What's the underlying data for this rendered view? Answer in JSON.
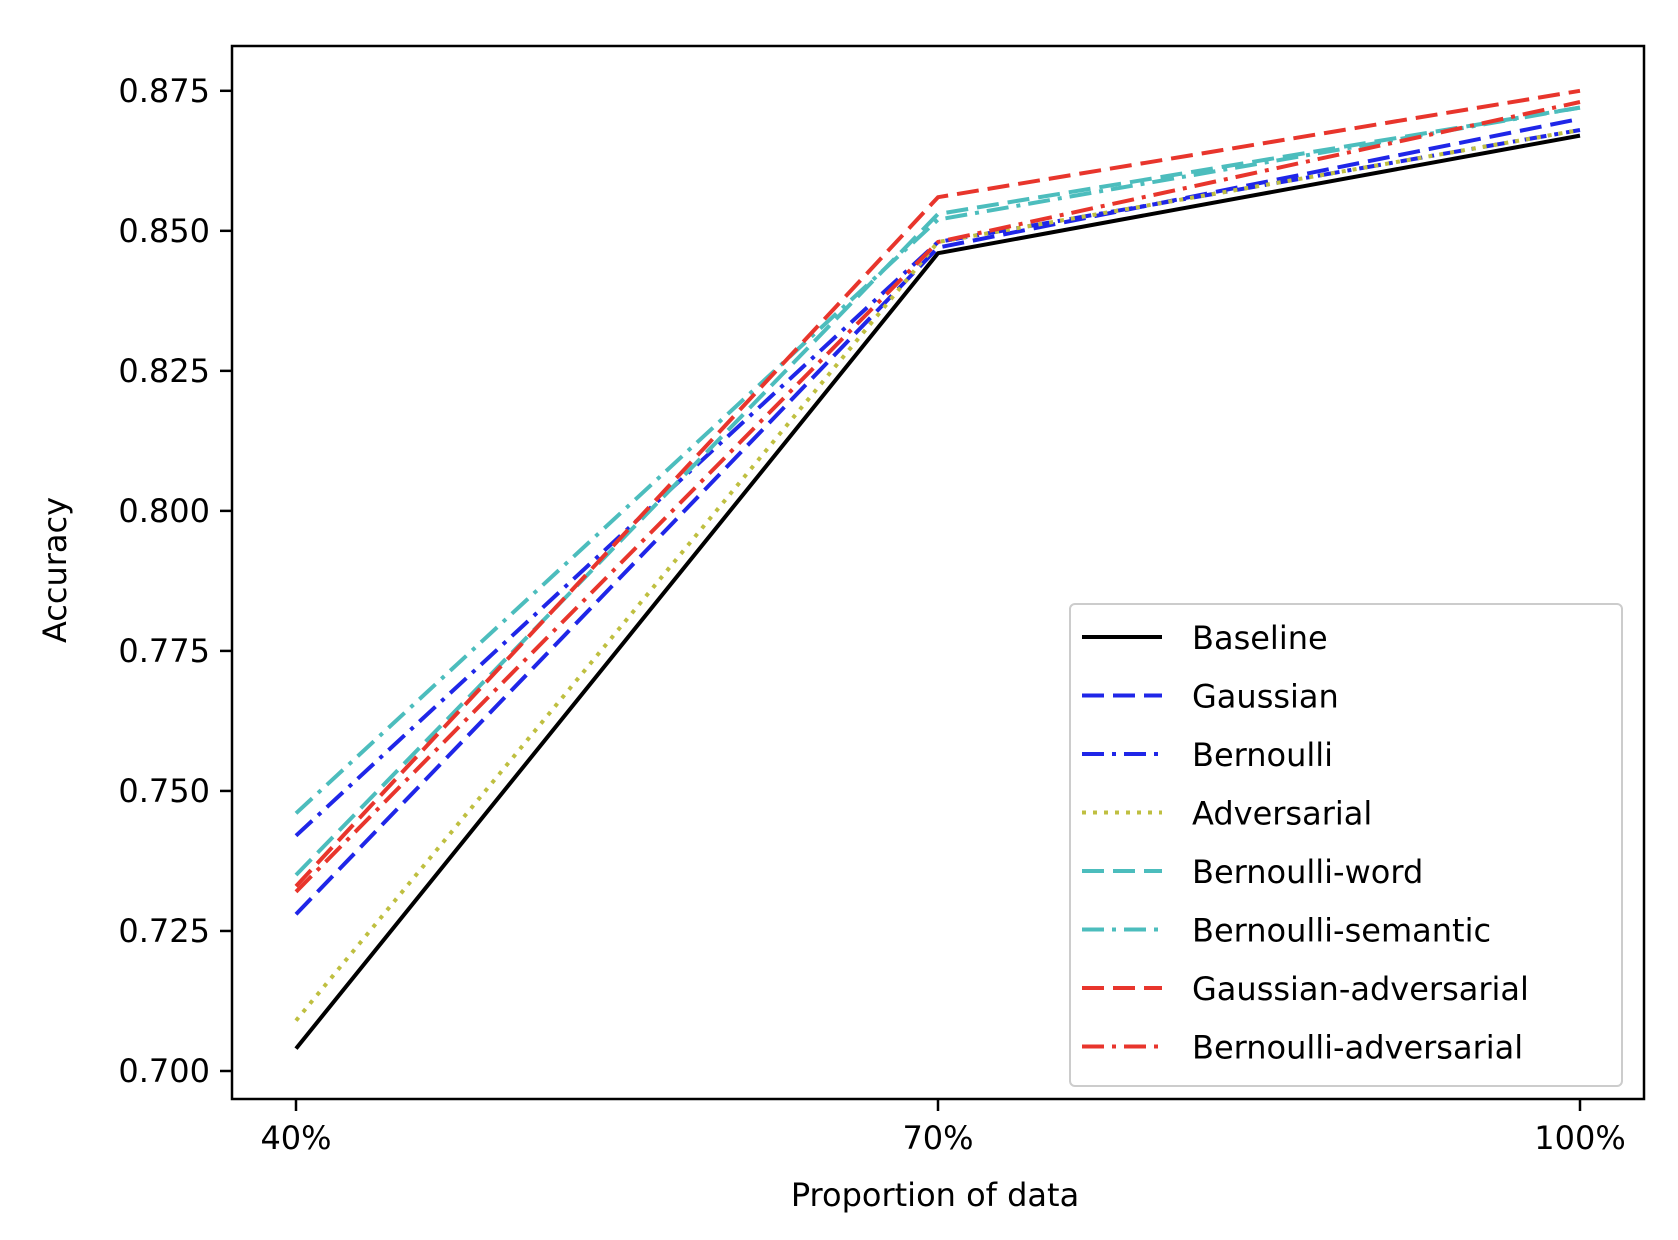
{
  "chart_data": {
    "type": "line",
    "xlabel": "Proportion of data",
    "ylabel": "Accuracy",
    "categories": [
      "40%",
      "70%",
      "100%"
    ],
    "ylim": [
      0.695,
      0.883
    ],
    "yticks": [
      0.7,
      0.725,
      0.75,
      0.775,
      0.8,
      0.825,
      0.85,
      0.875
    ],
    "ytick_labels": [
      "0.700",
      "0.725",
      "0.750",
      "0.775",
      "0.800",
      "0.825",
      "0.850",
      "0.875"
    ],
    "grid": false,
    "legend_position": "lower-right",
    "series": [
      {
        "name": "Baseline",
        "values": [
          0.704,
          0.846,
          0.867
        ],
        "color": "#000000",
        "style": "solid"
      },
      {
        "name": "Gaussian",
        "values": [
          0.728,
          0.847,
          0.87
        ],
        "color": "#1f26e8",
        "style": "dashed"
      },
      {
        "name": "Bernoulli",
        "values": [
          0.742,
          0.848,
          0.868
        ],
        "color": "#1f26e8",
        "style": "dashdot"
      },
      {
        "name": "Adversarial",
        "values": [
          0.709,
          0.848,
          0.868
        ],
        "color": "#bfbf40",
        "style": "dotted"
      },
      {
        "name": "Bernoulli-word",
        "values": [
          0.735,
          0.853,
          0.872
        ],
        "color": "#4cbdbd",
        "style": "dashed"
      },
      {
        "name": "Bernoulli-semantic",
        "values": [
          0.746,
          0.852,
          0.872
        ],
        "color": "#4cbdbd",
        "style": "dashdot"
      },
      {
        "name": "Gaussian-adversarial",
        "values": [
          0.733,
          0.856,
          0.875
        ],
        "color": "#e8352c",
        "style": "dashed"
      },
      {
        "name": "Bernoulli-adversarial",
        "values": [
          0.732,
          0.848,
          0.873
        ],
        "color": "#e8352c",
        "style": "dashdot"
      }
    ]
  }
}
